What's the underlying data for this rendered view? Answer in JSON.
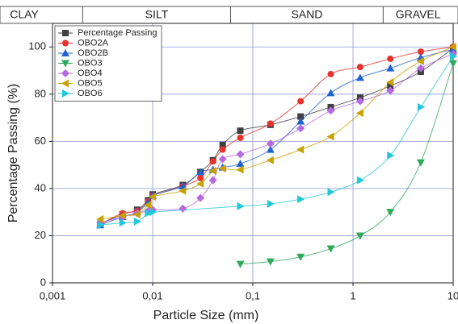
{
  "chart_data": {
    "type": "line",
    "xscale": "log",
    "grid": true,
    "legend": "upper left",
    "xlabel": "Particle Size (mm)",
    "ylabel": "Percentage Passing (%)",
    "xlim": [
      0.001,
      10
    ],
    "ylim": [
      0,
      110
    ],
    "xticks": [
      {
        "value": 0.001,
        "label": "0,001"
      },
      {
        "value": 0.01,
        "label": "0,01"
      },
      {
        "value": 0.1,
        "label": "0,1"
      },
      1,
      10
    ],
    "yticks": [
      0,
      20,
      40,
      60,
      80,
      100
    ],
    "zones": [
      {
        "label": "CLAY",
        "from": 0.001,
        "to": 0.002
      },
      {
        "label": "SILT",
        "from": 0.002,
        "to": 0.06
      },
      {
        "label": "SAND",
        "from": 0.06,
        "to": 2
      },
      {
        "label": "GRAVEL",
        "from": 2,
        "to": 10
      }
    ],
    "series": [
      {
        "name": "Percentage Passing",
        "color": "#404040",
        "marker": "square",
        "x": [
          0.003,
          0.005,
          0.007,
          0.009,
          0.01,
          0.02,
          0.03,
          0.04,
          0.05,
          0.075,
          0.15,
          0.3,
          0.6,
          1.18,
          2.36,
          4.75,
          10
        ],
        "values": [
          25,
          29,
          31,
          35,
          37.5,
          41.5,
          47,
          52,
          58.5,
          64.5,
          67,
          70.5,
          74.5,
          78.5,
          83.5,
          89.5,
          99.5
        ]
      },
      {
        "name": "OBO2A",
        "color": "#e8322e",
        "marker": "circle",
        "x": [
          0.003,
          0.005,
          0.007,
          0.009,
          0.01,
          0.02,
          0.03,
          0.04,
          0.05,
          0.075,
          0.15,
          0.3,
          0.6,
          1.18,
          2.36,
          4.75,
          10
        ],
        "values": [
          25,
          29.5,
          30.5,
          34.5,
          37,
          41,
          44.5,
          51.5,
          56.5,
          61.5,
          67.5,
          77,
          88.5,
          91.5,
          95,
          98,
          100
        ]
      },
      {
        "name": "OBO2B",
        "color": "#1f63d0",
        "marker": "tri-up",
        "x": [
          0.003,
          0.005,
          0.007,
          0.009,
          0.01,
          0.02,
          0.03,
          0.04,
          0.05,
          0.075,
          0.15,
          0.3,
          0.6,
          1.18,
          2.36,
          4.75,
          10
        ],
        "values": [
          24.5,
          28,
          30,
          34,
          37,
          41,
          47,
          48,
          49,
          50.5,
          56.5,
          68.5,
          80.5,
          87,
          91,
          95.5,
          99
        ]
      },
      {
        "name": "OBO3",
        "color": "#2eaa5a",
        "marker": "tri-down",
        "x": [
          0.075,
          0.15,
          0.3,
          0.6,
          1.18,
          2.36,
          4.75,
          10
        ],
        "values": [
          8,
          9,
          11,
          14.5,
          20,
          30,
          51,
          93
        ]
      },
      {
        "name": "OBO4",
        "color": "#b56ae0",
        "marker": "diamond",
        "x": [
          0.003,
          0.005,
          0.007,
          0.009,
          0.01,
          0.02,
          0.03,
          0.04,
          0.05,
          0.075,
          0.15,
          0.3,
          0.6,
          1.18,
          2.36,
          4.75,
          10
        ],
        "values": [
          25.5,
          28,
          29.5,
          30.5,
          31,
          31.5,
          36,
          43.5,
          52.5,
          54.5,
          59,
          65.5,
          73,
          77,
          81.5,
          91,
          97
        ]
      },
      {
        "name": "OBO5",
        "color": "#c9a100",
        "marker": "tri-left",
        "x": [
          0.003,
          0.005,
          0.007,
          0.009,
          0.01,
          0.02,
          0.03,
          0.04,
          0.05,
          0.075,
          0.15,
          0.3,
          0.6,
          1.18,
          2.36,
          4.75,
          10
        ],
        "values": [
          27,
          28.5,
          29,
          33,
          36.5,
          39,
          42,
          47.5,
          48.5,
          48,
          52,
          56.5,
          62,
          72,
          85,
          94,
          100
        ]
      },
      {
        "name": "OBO6",
        "color": "#20c8d8",
        "marker": "tri-right",
        "x": [
          0.003,
          0.005,
          0.007,
          0.009,
          0.01,
          0.075,
          0.15,
          0.3,
          0.6,
          1.18,
          2.36,
          4.75,
          10
        ],
        "values": [
          24.5,
          25.5,
          26,
          29.5,
          30,
          32.5,
          33.5,
          35.5,
          38.5,
          43.5,
          54,
          74.5,
          96
        ]
      }
    ]
  }
}
